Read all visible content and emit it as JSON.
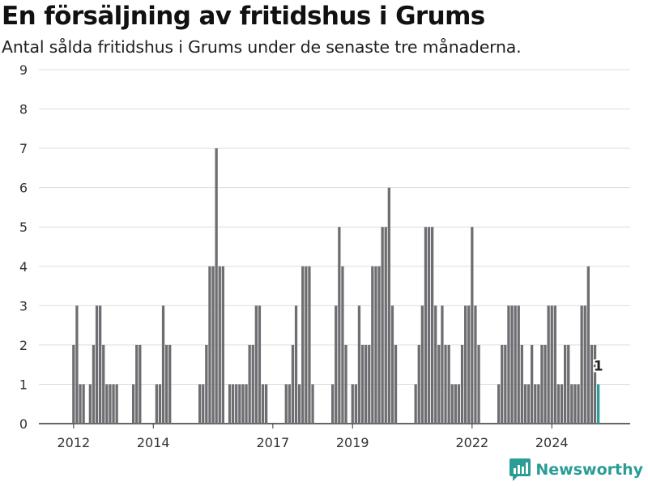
{
  "header": {
    "title": "En försäljning av fritidshus i Grums",
    "subtitle": "Antal sålda fritidshus i Grums under de senaste tre månaderna."
  },
  "brand": {
    "name": "Newsworthy",
    "icon": "newsworthy-logo-icon",
    "color": "#2a9d96"
  },
  "colors": {
    "bar": "#6e6e72",
    "highlight": "#2a9d96",
    "grid": "#dddddd"
  },
  "chart_data": {
    "type": "bar",
    "title": "En försäljning av fritidshus i Grums",
    "subtitle": "Antal sålda fritidshus i Grums under de senaste tre månaderna.",
    "xlabel": "",
    "ylabel": "",
    "ylim": [
      0,
      9
    ],
    "yticks": [
      0,
      1,
      2,
      3,
      4,
      5,
      6,
      7,
      8,
      9
    ],
    "xticks": [
      {
        "label": "2012",
        "index": 2
      },
      {
        "label": "2014",
        "index": 26
      },
      {
        "label": "2017",
        "index": 62
      },
      {
        "label": "2019",
        "index": 86
      },
      {
        "label": "2022",
        "index": 122
      },
      {
        "label": "2024",
        "index": 146
      }
    ],
    "grid": true,
    "highlight_label": "1",
    "values": [
      0,
      0,
      2,
      3,
      1,
      1,
      0,
      1,
      2,
      3,
      3,
      2,
      1,
      1,
      1,
      1,
      0,
      0,
      0,
      0,
      1,
      2,
      2,
      0,
      0,
      0,
      0,
      1,
      1,
      3,
      2,
      2,
      0,
      0,
      0,
      0,
      0,
      0,
      0,
      0,
      1,
      1,
      2,
      4,
      4,
      7,
      4,
      4,
      0,
      1,
      1,
      1,
      1,
      1,
      1,
      2,
      2,
      3,
      3,
      1,
      1,
      0,
      0,
      0,
      0,
      0,
      1,
      1,
      2,
      3,
      1,
      4,
      4,
      4,
      1,
      0,
      0,
      0,
      0,
      0,
      1,
      3,
      5,
      4,
      2,
      0,
      1,
      1,
      3,
      2,
      2,
      2,
      4,
      4,
      4,
      5,
      5,
      6,
      3,
      2,
      0,
      0,
      0,
      0,
      0,
      1,
      2,
      3,
      5,
      5,
      5,
      3,
      2,
      3,
      2,
      2,
      1,
      1,
      1,
      2,
      3,
      3,
      5,
      3,
      2,
      0,
      0,
      0,
      0,
      0,
      1,
      2,
      2,
      3,
      3,
      3,
      3,
      2,
      1,
      1,
      2,
      1,
      1,
      2,
      2,
      3,
      3,
      3,
      1,
      1,
      2,
      2,
      1,
      1,
      1,
      3,
      3,
      4,
      2,
      2,
      1
    ],
    "highlight_index": 160
  }
}
